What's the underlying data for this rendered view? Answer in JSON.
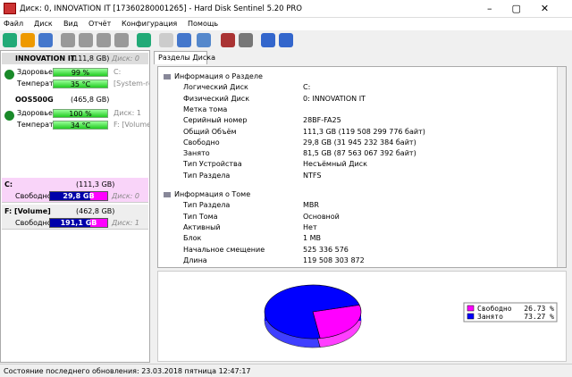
{
  "window": {
    "title": "Диск: 0, INNOVATION IT [17360280001265]  -  Hard Disk Sentinel 5.20 PRO"
  },
  "menu": [
    "Файл",
    "Диск",
    "Вид",
    "Отчёт",
    "Конфигурация",
    "Помощь"
  ],
  "disks": [
    {
      "name": "INNOVATION IT",
      "size": "(111,8 GB)",
      "disk": "Диск: 0",
      "rows": [
        [
          "Здоровье:",
          "99 %",
          "C:"
        ],
        [
          "Температура:",
          "35 °C",
          "[System-rese"
        ]
      ]
    },
    {
      "name": "OOS500G",
      "size": "(465,8 GB)",
      "disk": "",
      "rows": [
        [
          "Здоровье:",
          "100 %",
          "Диск: 1"
        ],
        [
          "Температура:",
          "34 °C",
          "F: [Volume]"
        ]
      ]
    }
  ],
  "partitions": [
    {
      "name": "C:",
      "size": "(111,3 GB)",
      "free_label": "Свободно",
      "free": "29,8 GB",
      "disk": "Диск: 0"
    },
    {
      "name": "F: [Volume]",
      "size": "(462,8 GB)",
      "free_label": "Свободно",
      "free": "191,1 GB",
      "disk": "Диск: 1"
    }
  ],
  "tab": "Разделы Диска",
  "info": [
    {
      "header": "Информация о Разделе",
      "rows": [
        [
          "Логический Диск",
          "C:"
        ],
        [
          "Физический Диск",
          "0: INNOVATION IT"
        ],
        [
          "Метка тома",
          ""
        ],
        [
          "Серийный номер",
          "28BF-FA25"
        ],
        [
          "Общий Объём",
          "111,3 GB (119 508 299 776 байт)"
        ],
        [
          "Свободно",
          "29,8 GB (31 945 232 384 байт)"
        ],
        [
          "Занято",
          "81,5 GB (87 563 067 392 байт)"
        ],
        [
          "Тип Устройства",
          "Несъёмный Диск"
        ],
        [
          "Тип Раздела",
          "NTFS"
        ]
      ]
    },
    {
      "header": "Информация о Томе",
      "rows": [
        [
          "Тип Раздела",
          "MBR"
        ],
        [
          "Тип Тома",
          "Основной"
        ],
        [
          "Активный",
          "Нет"
        ],
        [
          "Блок",
          "1 MB"
        ],
        [
          "Начальное смещение",
          "525 336 576"
        ],
        [
          "Длина",
          "119 508 303 872"
        ]
      ]
    }
  ],
  "chart_data": {
    "type": "pie",
    "categories": [
      "Свободно",
      "Занято"
    ],
    "values": [
      26.73,
      73.27
    ],
    "value_labels": [
      "26.73 %",
      "73.27 %"
    ],
    "colors": [
      "#ff00ff",
      "#0000ff"
    ]
  },
  "status": "Состояние последнего обновления: 23.03.2018 пятница 12:47:17"
}
